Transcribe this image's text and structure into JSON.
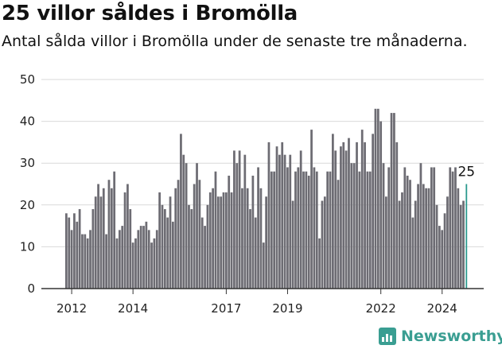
{
  "header": {
    "title": "25 villor såldes i Bromölla",
    "subtitle": "Antal sålda villor i Bromölla under de senaste tre månaderna."
  },
  "brand": {
    "name": "Newsworthy",
    "logo_icon": "bar-chart-icon",
    "color": "#3a9e92"
  },
  "colors": {
    "bar": "#6d6c73",
    "highlight": "#2a9a8e",
    "grid": "#d9d9d9",
    "axis": "#333333"
  },
  "chart_data": {
    "type": "bar",
    "title": "25 villor såldes i Bromölla",
    "subtitle": "Antal sålda villor i Bromölla under de senaste tre månaderna.",
    "xlabel": "",
    "ylabel": "",
    "ylim": [
      0,
      50
    ],
    "yticks": [
      0,
      10,
      20,
      30,
      40,
      50
    ],
    "grid": true,
    "legend": "none",
    "x_tick_labels": [
      "2012",
      "2014",
      "2017",
      "2019",
      "2022",
      "2024"
    ],
    "x_tick_indices": [
      2,
      25,
      60,
      83,
      118,
      141
    ],
    "last_value_label": "25",
    "values": [
      18,
      17,
      14,
      18,
      16,
      19,
      13,
      13,
      12,
      14,
      19,
      22,
      25,
      22,
      24,
      13,
      26,
      24,
      28,
      12,
      14,
      15,
      23,
      25,
      19,
      11,
      12,
      14,
      15,
      15,
      16,
      14,
      11,
      12,
      14,
      23,
      20,
      19,
      17,
      22,
      16,
      24,
      26,
      37,
      32,
      30,
      20,
      19,
      25,
      30,
      26,
      17,
      15,
      20,
      23,
      24,
      28,
      22,
      22,
      23,
      23,
      27,
      23,
      33,
      30,
      33,
      24,
      32,
      24,
      19,
      27,
      17,
      29,
      24,
      11,
      22,
      35,
      28,
      28,
      34,
      32,
      35,
      32,
      29,
      32,
      21,
      28,
      29,
      33,
      28,
      28,
      27,
      38,
      29,
      28,
      12,
      21,
      22,
      28,
      28,
      37,
      33,
      26,
      34,
      35,
      33,
      36,
      30,
      30,
      35,
      28,
      38,
      35,
      28,
      28,
      37,
      43,
      43,
      40,
      30,
      22,
      29,
      42,
      42,
      35,
      21,
      23,
      29,
      27,
      26,
      17,
      21,
      25,
      30,
      25,
      24,
      24,
      29,
      29,
      20,
      15,
      14,
      18,
      22,
      29,
      28,
      29,
      24,
      20,
      21,
      25
    ]
  }
}
